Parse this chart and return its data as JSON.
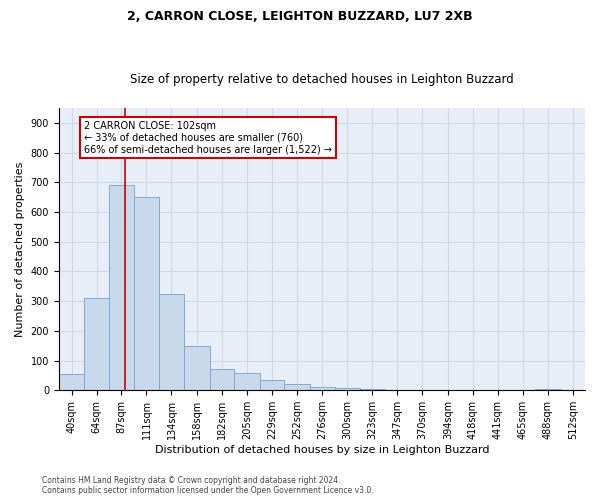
{
  "title1": "2, CARRON CLOSE, LEIGHTON BUZZARD, LU7 2XB",
  "title2": "Size of property relative to detached houses in Leighton Buzzard",
  "xlabel": "Distribution of detached houses by size in Leighton Buzzard",
  "ylabel": "Number of detached properties",
  "footnote": "Contains HM Land Registry data © Crown copyright and database right 2024.\nContains public sector information licensed under the Open Government Licence v3.0.",
  "bin_labels": [
    "40sqm",
    "64sqm",
    "87sqm",
    "111sqm",
    "134sqm",
    "158sqm",
    "182sqm",
    "205sqm",
    "229sqm",
    "252sqm",
    "276sqm",
    "300sqm",
    "323sqm",
    "347sqm",
    "370sqm",
    "394sqm",
    "418sqm",
    "441sqm",
    "465sqm",
    "488sqm",
    "512sqm"
  ],
  "bar_values": [
    55,
    310,
    690,
    650,
    325,
    150,
    70,
    57,
    35,
    20,
    10,
    8,
    3,
    0,
    0,
    0,
    0,
    0,
    0,
    5,
    0
  ],
  "bar_color": "#c9d9eb",
  "bar_edge_color": "#7aadd4",
  "annotation_text_line1": "2 CARRON CLOSE: 102sqm",
  "annotation_text_line2": "← 33% of detached houses are smaller (760)",
  "annotation_text_line3": "66% of semi-detached houses are larger (1,522) →",
  "annotation_box_color": "#ffffff",
  "annotation_box_edge": "#cc0000",
  "vline_color": "#cc0000",
  "xlim_min": 40,
  "xlim_max": 535,
  "ylim_min": 0,
  "ylim_max": 950,
  "property_sqm": 102,
  "grid_color": "#d0d8e8",
  "background_color": "#e8eef7",
  "title1_fontsize": 9,
  "title2_fontsize": 8.5,
  "tick_fontsize": 7,
  "ylabel_fontsize": 8,
  "xlabel_fontsize": 8,
  "annot_fontsize": 7,
  "footnote_fontsize": 5.5
}
